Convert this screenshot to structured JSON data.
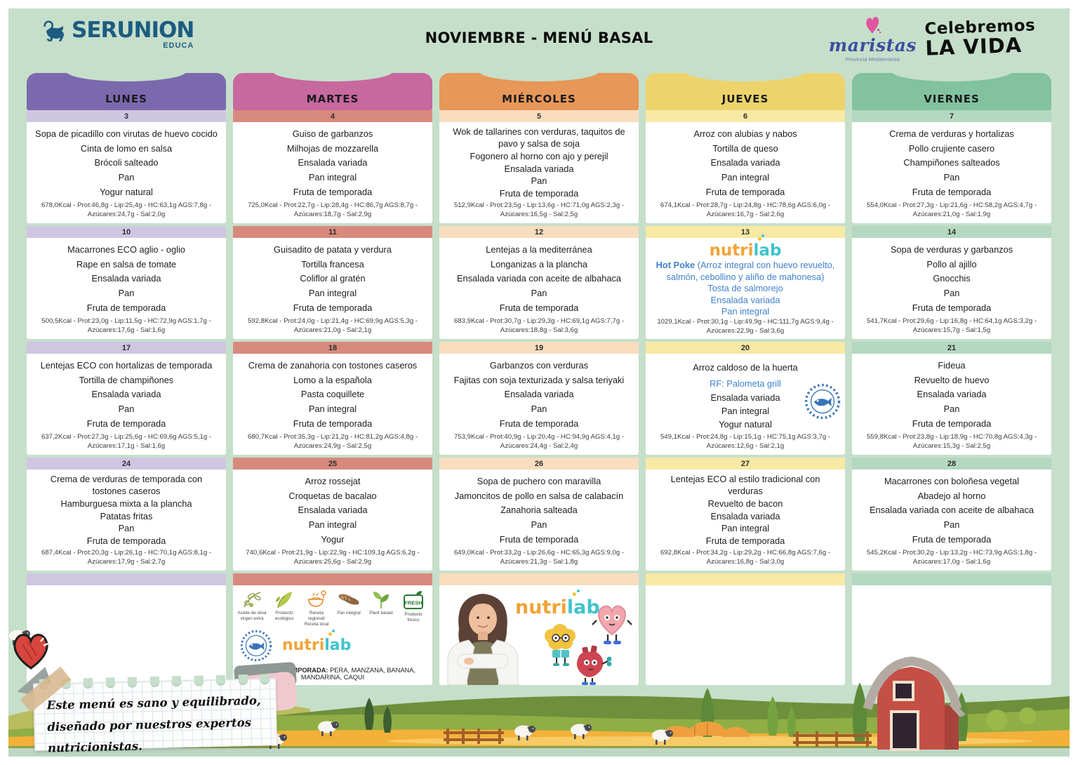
{
  "page": {
    "title": "NOVIEMBRE - MENÚ BASAL"
  },
  "brand": {
    "name": "SERUNION",
    "sub": "EDUCA"
  },
  "school_logo": {
    "name": "maristas",
    "sub": "Provincia Mediterránea"
  },
  "slogan": {
    "line1": "Celebremos",
    "line2": "LA VIDA"
  },
  "logos": {
    "nutrilab": {
      "part1": "nutri",
      "part2": "lab"
    }
  },
  "note": {
    "text": "Este menú es sano y equilibrado, diseñado por nuestros expertos nutricionistas."
  },
  "legend": {
    "items": [
      {
        "icon": "olive-branch-icon",
        "label": "Aceite de oliva virgen extra"
      },
      {
        "icon": "eco-leaves-icon",
        "label": "Producto ecológico"
      },
      {
        "icon": "regional-recipe-icon",
        "label": "Receta regional/ Receta local"
      },
      {
        "icon": "wholegrain-bread-icon",
        "label": "Pan integral"
      },
      {
        "icon": "plant-based-icon",
        "label": "Plant based"
      },
      {
        "icon": "fresh-badge-icon",
        "label": "Producto fresco",
        "badge": "FRESH"
      }
    ],
    "fruit_label": "FRUTA DE TEMPORADA:",
    "fruit_value": " PERA, MANZANA, BANANA, MANDARINA, CAQUI"
  },
  "colors": {
    "background": "#c6dfca",
    "monday": "#7b69ae",
    "monday_light": "#cfc6e2",
    "tuesday": "#c7689f",
    "tuesday_light": "#d8897d",
    "wednesday": "#e79757",
    "wednesday_light": "#f8ddbe",
    "thursday": "#edd36b",
    "thursday_light": "#f8e9a4",
    "friday": "#82c29e",
    "friday_light": "#b4d8c2",
    "nutrilab_orange": "#f0a437",
    "nutrilab_teal": "#3fc3cd",
    "highlight_blue": "#3e82cd",
    "brand_blue": "#1d5c80",
    "maristas_blue": "#3b4ea0",
    "maristas_pink": "#e0559f"
  },
  "columns": [
    {
      "day": "LUNES",
      "weeks": [
        {
          "date": "3",
          "items": [
            "Sopa de picadillo con virutas de huevo cocido",
            "Cinta de lomo en salsa",
            "Brócoli salteado",
            "Pan",
            "Yogur natural"
          ],
          "nutrition": "678,0Kcal - Prot:46,8g - Lip:25,4g - HC:63,1g AGS:7,8g - Azúcares:24,7g - Sal:2,0g"
        },
        {
          "date": "10",
          "items": [
            "Macarrones ECO aglio - oglio",
            "Rape en salsa de tomate",
            "Ensalada variada",
            "Pan",
            "Fruta de temporada"
          ],
          "nutrition": "500,5Kcal - Prot:23,0g - Lip:11,5g - HC:72,9g AGS:1,7g - Azúcares:17,6g - Sal:1,6g"
        },
        {
          "date": "17",
          "items": [
            "Lentejas ECO con hortalizas de temporada",
            "Tortilla de champiñones",
            "Ensalada variada",
            "Pan",
            "Fruta de temporada"
          ],
          "nutrition": "637,2Kcal - Prot:27,3g - Lip:25,6g - HC:69,6g AGS:5,1g - Azúcares:17,1g - Sal:1,6g"
        },
        {
          "date": "24",
          "items": [
            "Crema de verduras de temporada con tostones caseros",
            "Hamburguesa mixta a la plancha",
            "Patatas fritas",
            "Pan",
            "Fruta de temporada"
          ],
          "nutrition": "687,4Kcal - Prot:20,3g - Lip:26,1g - HC:70,1g AGS:8,1g - Azúcares:17,9g - Sal:2,7g"
        }
      ]
    },
    {
      "day": "MARTES",
      "weeks": [
        {
          "date": "4",
          "items": [
            "Guiso de garbanzos",
            "Milhojas de mozzarella",
            "Ensalada variada",
            "Pan integral",
            "Fruta de temporada"
          ],
          "nutrition": "725,0Kcal - Prot:22,7g - Lip:28,4g - HC:86,7g AGS:8,7g - Azúcares:18,7g - Sal:2,9g"
        },
        {
          "date": "11",
          "items": [
            "Guisadito de patata y verdura",
            "Tortilla francesa",
            "Coliflor al gratén",
            "Pan integral",
            "Fruta de temporada"
          ],
          "nutrition": "592,8Kcal - Prot:24,0g - Lip:21,4g - HC:69,9g AGS:5,3g - Azúcares:21,0g - Sal:2,1g"
        },
        {
          "date": "18",
          "items": [
            "Crema de zanahoria con tostones caseros",
            "Lomo a la española",
            "Pasta coquillete",
            "Pan integral",
            "Fruta de temporada"
          ],
          "nutrition": "680,7Kcal - Prot:35,3g - Lip:21,2g - HC:81,2g AGS:4,8g - Azúcares:24,9g - Sal:2,5g"
        },
        {
          "date": "25",
          "items": [
            "Arroz rossejat",
            "Croquetas de bacalao",
            "Ensalada variada",
            "Pan integral",
            "Yogur"
          ],
          "nutrition": "740,6Kcal - Prot:21,9g - Lip:22,9g - HC:109,1g AGS:6,2g - Azúcares:25,6g - Sal:2,9g"
        }
      ]
    },
    {
      "day": "MIÉRCOLES",
      "weeks": [
        {
          "date": "5",
          "items": [
            "Wok de tallarines con verduras, taquitos de pavo y salsa de soja",
            "Fogonero al horno con ajo y perejil",
            "Ensalada variada",
            "Pan",
            "Fruta de temporada"
          ],
          "nutrition": "512,9Kcal - Prot:23,5g - Lip:13,6g - HC:71,0g AGS:2,3g - Azúcares:16,5g - Sal:2,5g"
        },
        {
          "date": "12",
          "items": [
            "Lentejas a la mediterránea",
            "Longanizas a la plancha",
            "Ensalada variada con aceite de albahaca",
            "Pan",
            "Fruta de temporada"
          ],
          "nutrition": "683,9Kcal - Prot:30,7g - Lip:29,3g - HC:69,1g AGS:7,7g - Azúcares:18,8g - Sal:3,6g"
        },
        {
          "date": "19",
          "items": [
            "Garbanzos con verduras",
            "Fajitas con soja texturizada y salsa teriyaki",
            "Ensalada variada",
            "Pan",
            "Fruta de temporada"
          ],
          "nutrition": "753,9Kcal - Prot:40,9g - Lip:20,4g - HC:94,9g AGS:4,1g - Azúcares:24,4g - Sal:2,4g"
        },
        {
          "date": "26",
          "items": [
            "Sopa de puchero con maravilla",
            "Jamoncitos de pollo en salsa de calabacín",
            "Zanahoria salteada",
            "Pan",
            "Fruta de temporada"
          ],
          "nutrition": "649,0Kcal - Prot:33,2g - Lip:26,6g - HC:65,3g AGS:9,0g - Azúcares:21,3g - Sal:1,8g"
        }
      ]
    },
    {
      "day": "JUEVES",
      "weeks": [
        {
          "date": "6",
          "items": [
            "Arroz con alubias y nabos",
            "Tortilla de queso",
            "Ensalada variada",
            "Pan integral",
            "Fruta de temporada"
          ],
          "nutrition": "674,1Kcal - Prot:28,7g - Lip:24,8g - HC:78,6g AGS:6,0g - Azúcares:16,7g - Sal:2,6g"
        },
        {
          "date": "13",
          "special": "nutrilab",
          "lead_bold": "Hot Poke",
          "lead_rest": "(Arroz integral con huevo revuelto, salmón, cebollino y aliño de mahonesa)",
          "blue_items": [
            "Tosta de salmorejo",
            "Ensalada variada",
            "Pan integral"
          ],
          "nutrition": "1029,1Kcal - Prot:30,1g - Lip:49,9g - HC:111,7g AGS:9,4g - Azúcares:22,9g - Sal:3,6g"
        },
        {
          "date": "20",
          "items_top": [
            "Arroz caldoso de la huerta"
          ],
          "highlight": "RF: Palometa grill",
          "items_bottom": [
            "Ensalada variada",
            "Pan integral",
            "Yogur natural"
          ],
          "nutrition": "549,1Kcal - Prot:24,8g - Lip:15,1g - HC:75,1g AGS:3,7g - Azúcares:12,6g - Sal:2,1g"
        },
        {
          "date": "27",
          "items": [
            "Lentejas ECO al estilo tradicional con verduras",
            "Revuelto de bacon",
            "Ensalada variada",
            "Pan integral",
            "Fruta de temporada"
          ],
          "nutrition": "692,8Kcal - Prot:34,2g - Lip:29,2g - HC:66,8g AGS:7,6g - Azúcares:16,8g - Sal:3,0g"
        }
      ]
    },
    {
      "day": "VIERNES",
      "weeks": [
        {
          "date": "7",
          "items": [
            "Crema de verduras y hortalizas",
            "Pollo crujiente casero",
            "Champiñones salteados",
            "Pan",
            "Fruta de temporada"
          ],
          "nutrition": "554,0Kcal - Prot:27,3g - Lip:21,6g - HC:58,2g AGS:4,7g - Azúcares:21,0g - Sal:1,9g"
        },
        {
          "date": "14",
          "items": [
            "Sopa de verduras y garbanzos",
            "Pollo al ajillo",
            "Gnocchis",
            "Pan",
            "Fruta de temporada"
          ],
          "nutrition": "541,7Kcal - Prot:29,6g - Lip:16,8g - HC:64,1g AGS:3,2g - Azúcares:15,7g - Sal:1,5g"
        },
        {
          "date": "21",
          "items": [
            "Fideua",
            "Revuelto de huevo",
            "Ensalada variada",
            "Pan",
            "Fruta de temporada"
          ],
          "nutrition": "559,8Kcal - Prot:23,8g - Lip:18,9g - HC:70,8g AGS:4,3g - Azúcares:15,3g - Sal:2,5g"
        },
        {
          "date": "28",
          "items": [
            "Macarrones con boloñesa vegetal",
            "Abadejo al horno",
            "Ensalada variada con aceite de albahaca",
            "Pan",
            "Fruta de temporada"
          ],
          "nutrition": "545,2Kcal - Prot:30,2g - Lip:13,2g - HC:73,9g AGS:1,8g - Azúcares:17,0g - Sal:1,6g"
        }
      ]
    }
  ]
}
